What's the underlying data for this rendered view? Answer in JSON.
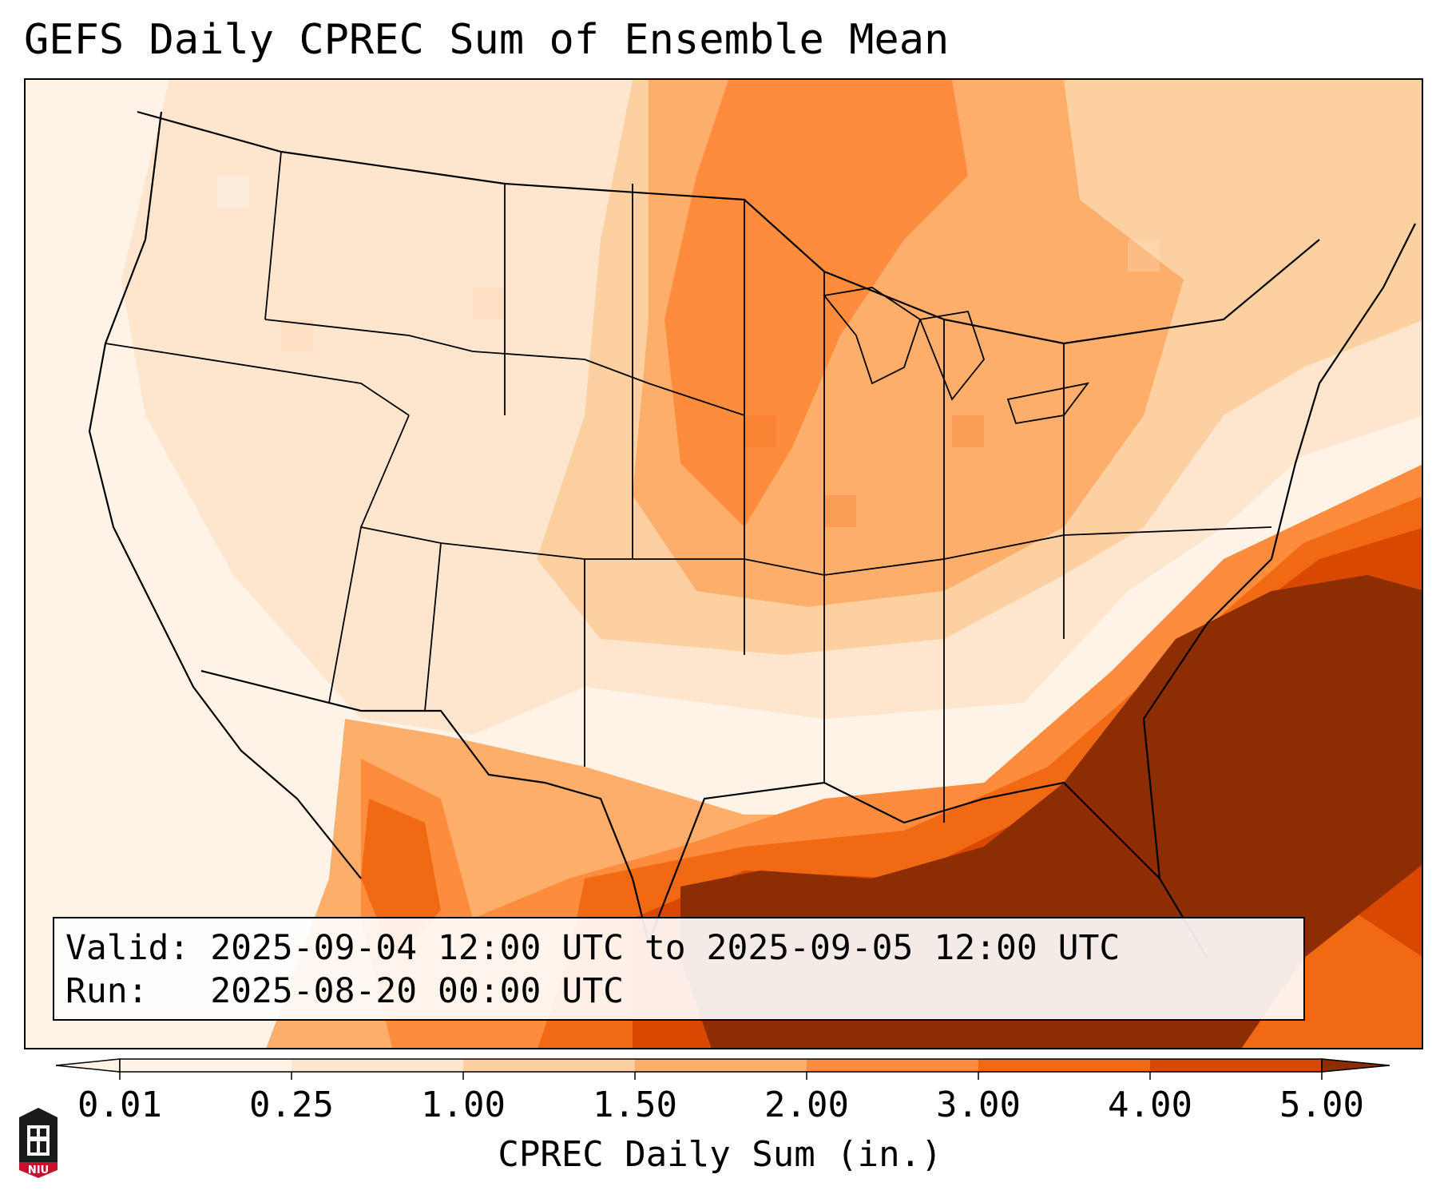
{
  "title": "GEFS Daily CPREC Sum of Ensemble Mean",
  "info": {
    "valid_label": "Valid:",
    "valid_value": "2025-09-04 12:00 UTC to 2025-09-05 12:00 UTC",
    "run_label": "Run:",
    "run_value": "2025-08-20 00:00 UTC"
  },
  "colorbar": {
    "label": "CPREC Daily Sum (in.)",
    "ticks": [
      "0.01",
      "0.25",
      "1.00",
      "1.50",
      "2.00",
      "3.00",
      "4.00",
      "5.00"
    ],
    "colors": [
      "#fff3e8",
      "#fee6ce",
      "#fdd0a2",
      "#fdae6b",
      "#fd8d3c",
      "#f16913",
      "#d94801",
      "#8c2d04"
    ]
  },
  "logo": {
    "text": "NIU",
    "icon": "niu-tower-logo"
  },
  "map": {
    "region": "CONUS",
    "precip_areas": [
      {
        "level": 6,
        "label": "Southeast Atlantic / Gulf heavy area"
      },
      {
        "level": 5,
        "label": "Gulf coast band"
      },
      {
        "level": 4,
        "label": "Mississippi valley / Southeast"
      },
      {
        "level": 3,
        "label": "Upper Midwest / Plains"
      },
      {
        "level": 2,
        "label": "Northern Plains / Northeast"
      },
      {
        "level": 1,
        "label": "Mountain West / Southwest"
      }
    ]
  }
}
